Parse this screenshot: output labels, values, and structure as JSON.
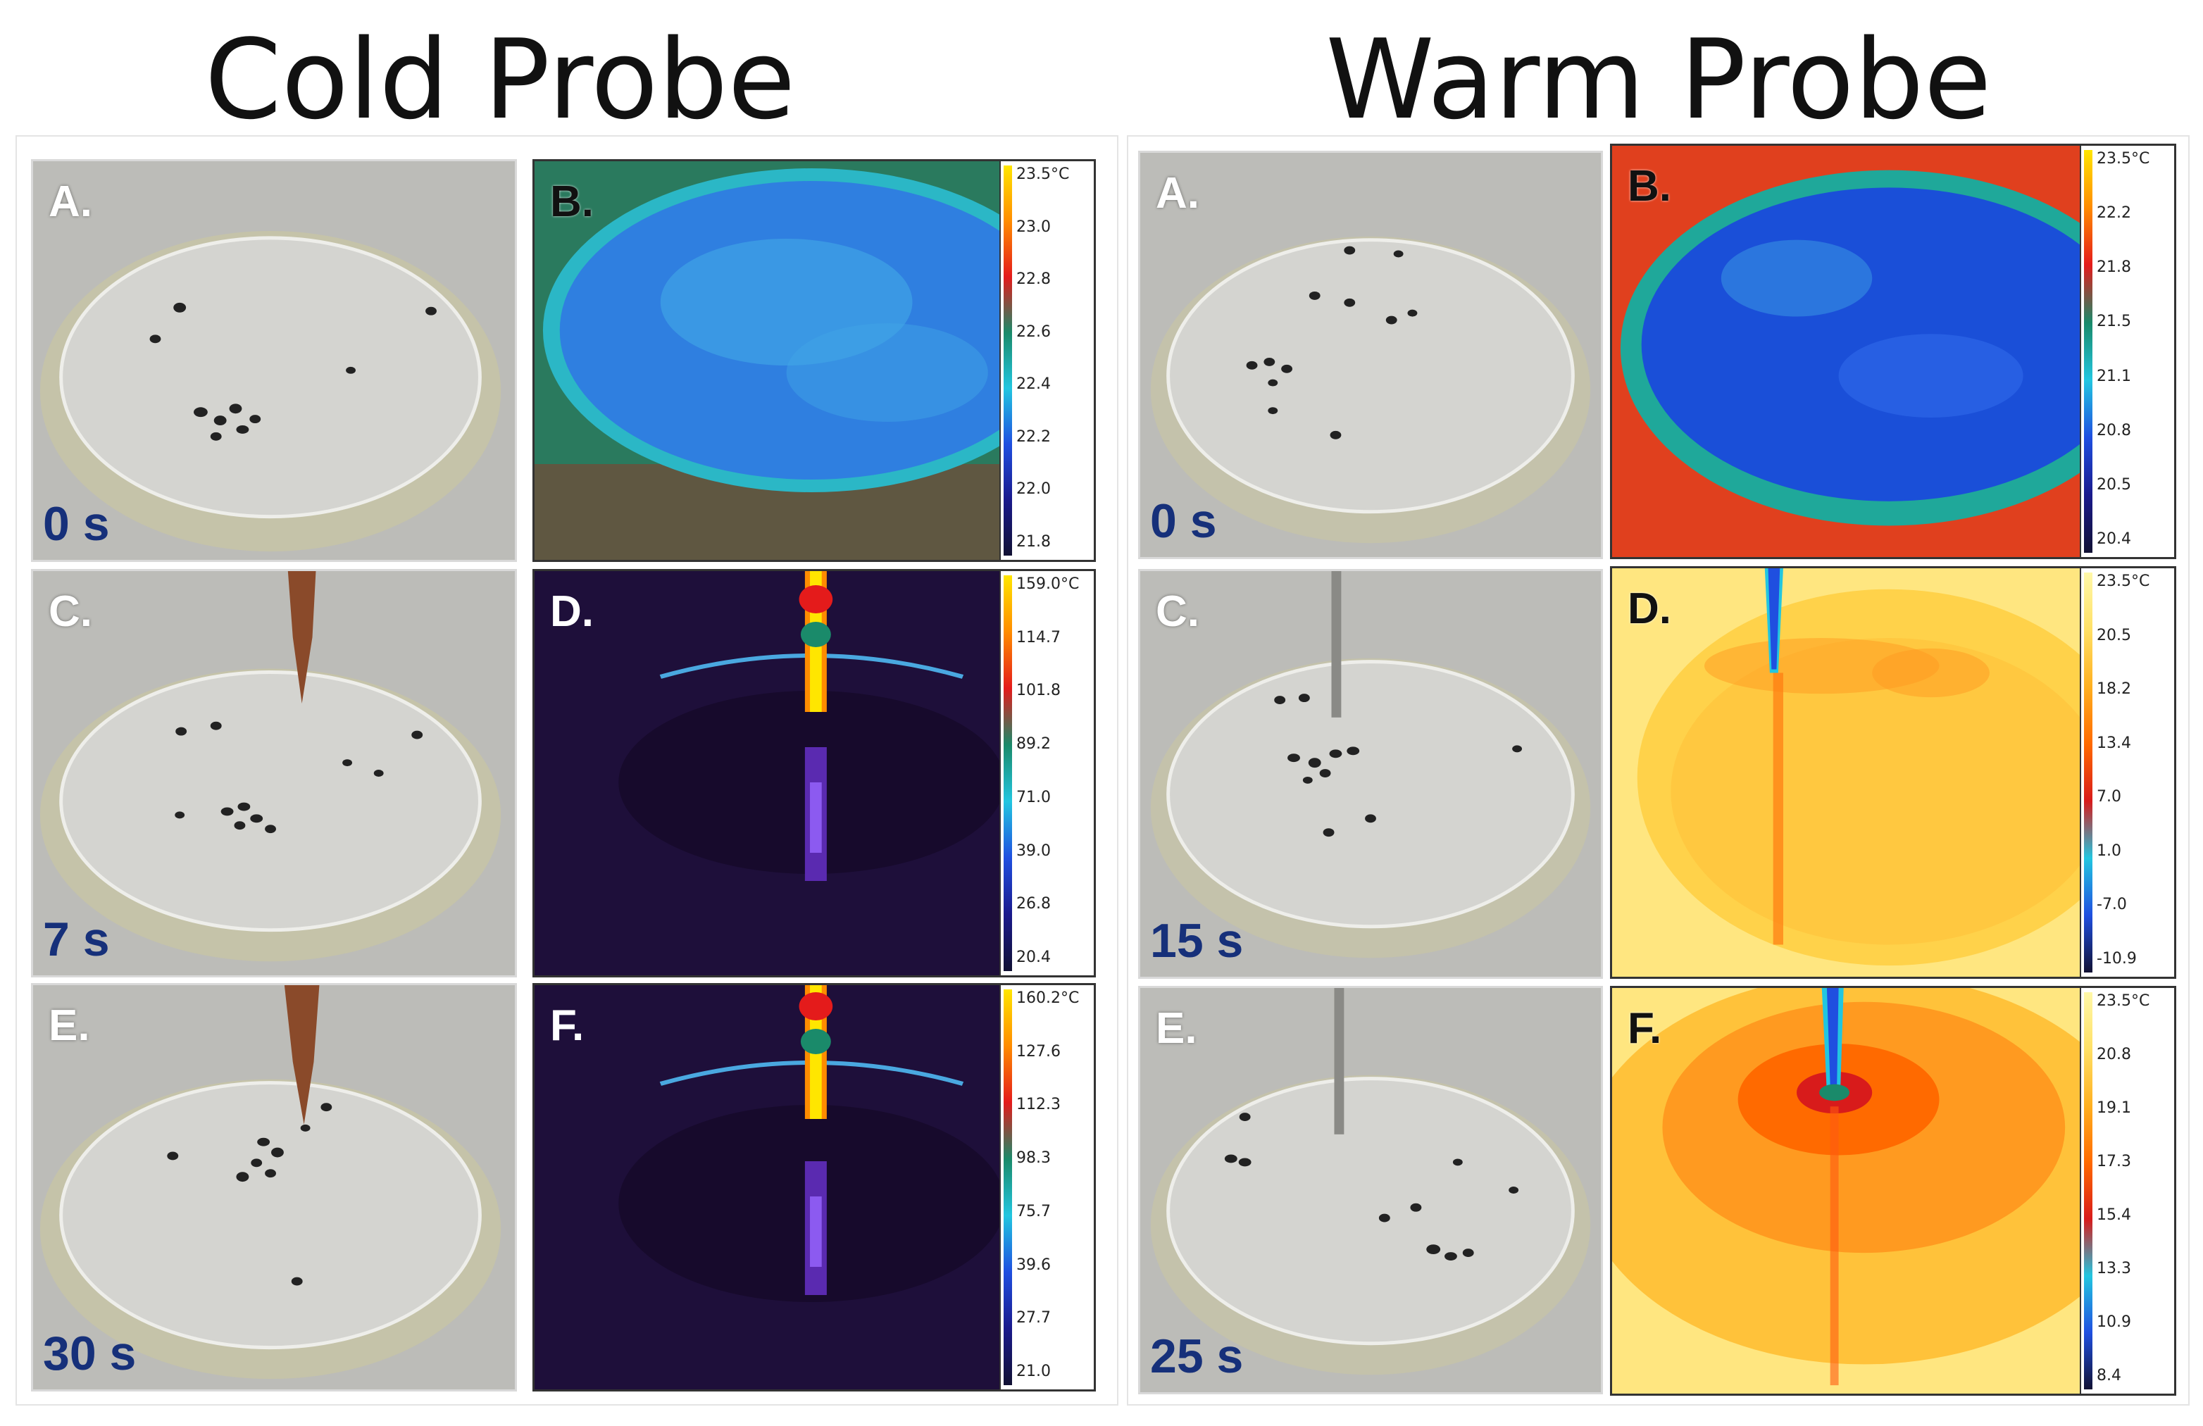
{
  "sections": {
    "cold": {
      "title": "Cold Probe"
    },
    "warm": {
      "title": "Warm Probe"
    }
  },
  "cold": {
    "A": {
      "label": "A.",
      "time": "0 s"
    },
    "B": {
      "label": "B.",
      "scale": [
        "23.5°C",
        "23.0",
        "22.8",
        "22.6",
        "22.4",
        "22.2",
        "22.0",
        "21.8"
      ]
    },
    "C": {
      "label": "C.",
      "time": "7 s"
    },
    "D": {
      "label": "D.",
      "scale": [
        "159.0°C",
        "114.7",
        "101.8",
        "89.2",
        "71.0",
        "39.0",
        "26.8",
        "20.4"
      ]
    },
    "E": {
      "label": "E.",
      "time": "30 s"
    },
    "F": {
      "label": "F.",
      "scale": [
        "160.2°C",
        "127.6",
        "112.3",
        "98.3",
        "75.7",
        "39.6",
        "27.7",
        "21.0"
      ]
    }
  },
  "warm": {
    "A": {
      "label": "A.",
      "time": "0 s"
    },
    "B": {
      "label": "B.",
      "scale": [
        "23.5°C",
        "22.2",
        "21.8",
        "21.5",
        "21.1",
        "20.8",
        "20.5",
        "20.4"
      ]
    },
    "C": {
      "label": "C.",
      "time": "15 s"
    },
    "D": {
      "label": "D.",
      "scale": [
        "23.5°C",
        "20.5",
        "18.2",
        "13.4",
        "7.0",
        "1.0",
        "-7.0",
        "-10.9"
      ]
    },
    "E": {
      "label": "E.",
      "time": "25 s"
    },
    "F": {
      "label": "F.",
      "scale": [
        "23.5°C",
        "20.8",
        "19.1",
        "17.3",
        "15.4",
        "13.3",
        "10.9",
        "8.4"
      ]
    }
  },
  "colors": {
    "time_label": "#16307a",
    "colormap_cool": [
      "#ffe600",
      "#ff8c00",
      "#e41b1b",
      "#1a8a6a",
      "#22c6e0",
      "#1f4fe0",
      "#1a1a8c",
      "#111133"
    ],
    "colormap_warm": [
      "#fff8a8",
      "#ffe066",
      "#ffb020",
      "#ff6a00",
      "#d81b1b",
      "#22c6e0",
      "#1f4fe0",
      "#111133"
    ]
  }
}
